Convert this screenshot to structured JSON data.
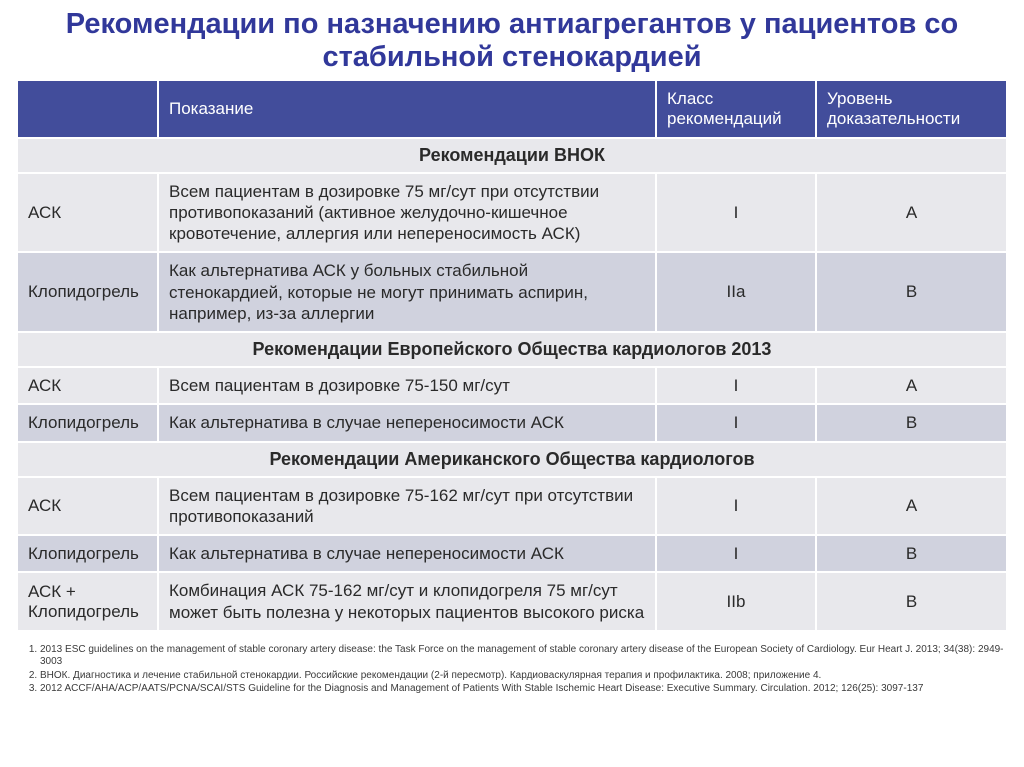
{
  "title": "Рекомендации по назначению антиагрегантов у пациентов со стабильной стенокардией",
  "header": {
    "drug": "",
    "indication": "Показание",
    "class": "Класс рекомендаций",
    "level": "Уровень доказательности"
  },
  "sections": [
    {
      "title": "Рекомендации ВНОК",
      "rows": [
        {
          "drug": "АСК",
          "indication": "Всем пациентам в дозировке 75 мг/сут при отсутствии противопоказаний (активное желудочно-кишечное кровотечение, аллергия или непереносимость АСК)",
          "class": "I",
          "level": "A",
          "shade": "even"
        },
        {
          "drug": "Клопидогрель",
          "indication": "Как альтернатива АСК у больных стабильной стенокардией, которые не могут принимать аспирин, например, из-за аллергии",
          "class": "IIa",
          "level": "B",
          "shade": "odd"
        }
      ]
    },
    {
      "title": "Рекомендации Европейского Общества кардиологов 2013",
      "rows": [
        {
          "drug": "АСК",
          "indication": "Всем пациентам в дозировке 75-150 мг/сут",
          "class": "I",
          "level": "A",
          "shade": "even"
        },
        {
          "drug": "Клопидогрель",
          "indication": "Как альтернатива в случае непереносимости АСК",
          "class": "I",
          "level": "B",
          "shade": "odd"
        }
      ]
    },
    {
      "title": "Рекомендации Американского Общества кардиологов",
      "rows": [
        {
          "drug": "АСК",
          "indication": "Всем пациентам в дозировке 75-162 мг/сут при отсутствии противопоказаний",
          "class": "I",
          "level": "A",
          "shade": "even"
        },
        {
          "drug": "Клопидогрель",
          "indication": "Как альтернатива в случае непереносимости АСК",
          "class": "I",
          "level": "B",
          "shade": "odd"
        },
        {
          "drug": "АСК + Клопидогрель",
          "indication": "Комбинация АСК 75-162 мг/сут и клопидогреля 75 мг/сут может быть полезна у некоторых пациентов высокого риска",
          "class": "IIb",
          "level": "B",
          "shade": "even"
        }
      ]
    }
  ],
  "references": [
    "2013 ESC guidelines on the management of stable coronary artery disease: the Task Force on the management of stable coronary artery disease of the European Society of Cardiology. Eur Heart J. 2013; 34(38): 2949-3003",
    "ВНОК. Диагностика и лечение стабильной стенокардии. Российские рекомендации (2-й пересмотр). Кардиоваскулярная терапия и профилактика. 2008; приложение 4.",
    "2012 ACCF/AHA/ACP/AATS/PCNA/SCAI/STS Guideline for the Diagnosis and Management of Patients With Stable Ischemic Heart Disease: Executive Summary. Circulation. 2012; 126(25): 3097-137"
  ],
  "colors": {
    "title": "#31389a",
    "header_bg": "#424d9b",
    "row_even": "#e8e8ec",
    "row_odd": "#d0d2de"
  }
}
